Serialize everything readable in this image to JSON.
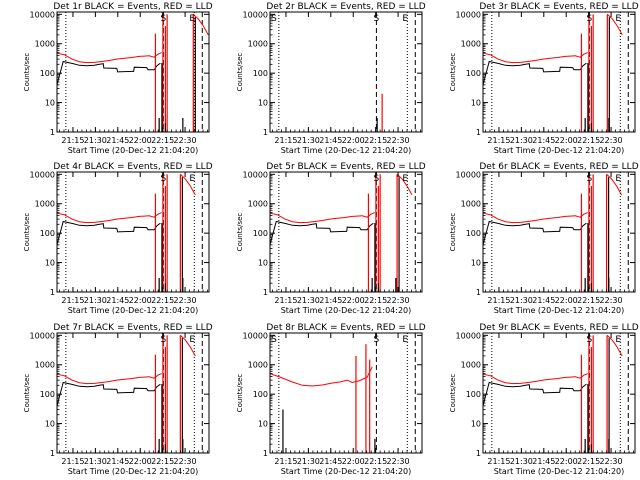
{
  "chart_data": {
    "type": "line",
    "ylabel": "Counts/sec",
    "xlabel": "Start Time (20-Dec-12 21:04:20)",
    "xtick_labels": [
      "21:15",
      "21:30",
      "21:45",
      "22:00",
      "22:15",
      "22:30"
    ],
    "xticks_sec": [
      640,
      1540,
      2440,
      3340,
      4240,
      5140
    ],
    "xlim_sec": [
      0,
      6100
    ],
    "ytick_labels": [
      "1",
      "10",
      "100",
      "1000",
      "10000"
    ],
    "ylim": [
      1,
      12000
    ],
    "yscale": "log",
    "colors": {
      "events": "#000000",
      "lld": "#ff0000",
      "frame": "#000000"
    },
    "markers": {
      "s": "S",
      "e": "E"
    },
    "dotted_lines_sec": [
      355,
      5510
    ],
    "dashed_lines_sec": [
      4270,
      5830
    ],
    "panels": [
      {
        "title": "Det 1r BLACK = Events, RED = LLD",
        "profile": "a",
        "gap_sec": [
          4160,
          5470
        ]
      },
      {
        "title": "Det 2r BLACK = Events, RED = LLD",
        "profile": "b"
      },
      {
        "title": "Det 3r BLACK = Events, RED = LLD",
        "profile": "a",
        "gap_sec": [
          4180,
          4990
        ]
      },
      {
        "title": "Det 4r BLACK = Events, RED = LLD",
        "profile": "a",
        "gap_sec": [
          4150,
          4950
        ]
      },
      {
        "title": "Det 5r BLACK = Events, RED = LLD",
        "profile": "a",
        "gap_sec": [
          4250,
          5100
        ]
      },
      {
        "title": "Det 6r BLACK = Events, RED = LLD",
        "profile": "a",
        "gap_sec": [
          4210,
          4960
        ]
      },
      {
        "title": "Det 7r BLACK = Events, RED = LLD",
        "profile": "a",
        "gap_sec": [
          4170,
          4950
        ]
      },
      {
        "title": "Det 8r BLACK = Events, RED = LLD",
        "profile": "c"
      },
      {
        "title": "Det 9r BLACK = Events, RED = LLD",
        "profile": "a",
        "gap_sec": [
          4300,
          4980
        ]
      }
    ],
    "events_series": [
      [
        0,
        40
      ],
      [
        250,
        250
      ],
      [
        600,
        215
      ],
      [
        900,
        185
      ],
      [
        1200,
        180
      ],
      [
        1500,
        185
      ],
      [
        1700,
        200
      ],
      [
        1860,
        210
      ],
      [
        1880,
        150
      ],
      [
        2400,
        145
      ],
      [
        2430,
        110
      ],
      [
        3000,
        115
      ],
      [
        3080,
        115
      ],
      [
        3100,
        160
      ],
      [
        3600,
        155
      ],
      [
        3650,
        130
      ],
      [
        3900,
        130
      ],
      [
        4000,
        175
      ],
      [
        4150,
        220
      ]
    ],
    "lld_series": [
      [
        0,
        480
      ],
      [
        300,
        420
      ],
      [
        600,
        300
      ],
      [
        900,
        245
      ],
      [
        1200,
        228
      ],
      [
        1500,
        232
      ],
      [
        1800,
        250
      ],
      [
        2100,
        270
      ],
      [
        2400,
        300
      ],
      [
        2700,
        320
      ],
      [
        3000,
        340
      ],
      [
        3300,
        370
      ],
      [
        3500,
        380
      ],
      [
        3700,
        390
      ],
      [
        3900,
        350
      ],
      [
        4050,
        440
      ],
      [
        4200,
        500
      ]
    ],
    "lld_tail": [
      [
        5500,
        10000
      ],
      [
        5700,
        7000
      ],
      [
        5900,
        4000
      ],
      [
        6100,
        2000
      ]
    ],
    "lld_spikes_sec": [
      [
        3950,
        2200
      ],
      [
        4250,
        10000
      ],
      [
        4350,
        4000
      ],
      [
        4420,
        10000
      ]
    ],
    "events_spikes_sec": [
      [
        4100,
        3
      ],
      [
        4350,
        2
      ],
      [
        5050,
        3
      ]
    ],
    "lld_series_8r": [
      [
        0,
        500
      ],
      [
        400,
        380
      ],
      [
        900,
        260
      ],
      [
        1300,
        200
      ],
      [
        1700,
        190
      ],
      [
        2100,
        205
      ],
      [
        2500,
        240
      ],
      [
        2800,
        260
      ],
      [
        3100,
        300
      ],
      [
        3300,
        250
      ],
      [
        3600,
        290
      ],
      [
        3900,
        380
      ],
      [
        4100,
        850
      ]
    ],
    "lld_spikes_8r": [
      [
        3450,
        2000
      ],
      [
        3850,
        5000
      ],
      [
        4000,
        1500
      ]
    ],
    "events_spikes_8r": [
      [
        520,
        30
      ],
      [
        4210,
        3
      ]
    ],
    "lld_spikes_2r": [
      [
        4500,
        20
      ]
    ],
    "events_spikes_2r": [
      [
        4300,
        3
      ]
    ]
  }
}
